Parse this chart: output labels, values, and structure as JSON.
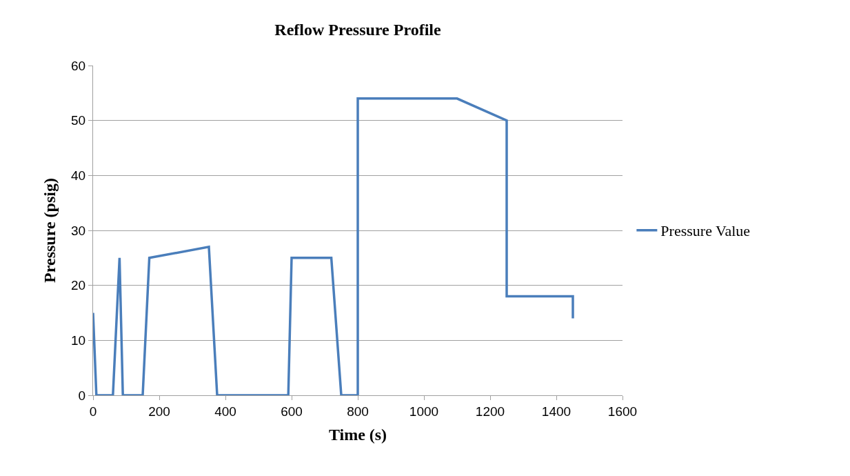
{
  "chart_data": {
    "type": "line",
    "title": "Reflow Pressure Profile",
    "xlabel": "Time (s)",
    "ylabel": "Pressure (psig)",
    "series": [
      {
        "name": "Pressure Value",
        "color": "#4a7ebb",
        "x": [
          0,
          10,
          60,
          80,
          90,
          150,
          170,
          350,
          375,
          590,
          600,
          720,
          750,
          800,
          800,
          1100,
          1250,
          1250,
          1450,
          1450
        ],
        "values": [
          15,
          0,
          0,
          25,
          0,
          0,
          25,
          27,
          0,
          0,
          25,
          25,
          0,
          0,
          54,
          54,
          50,
          18,
          18,
          14
        ]
      }
    ],
    "xlim": [
      0,
      1600
    ],
    "xticks": [
      0,
      200,
      400,
      600,
      800,
      1000,
      1200,
      1400,
      1600
    ],
    "ylim": [
      0,
      60
    ],
    "yticks": [
      0,
      10,
      20,
      30,
      40,
      50,
      60
    ],
    "grid": "y",
    "legend": "right",
    "marker": "none",
    "line_style": "solid"
  }
}
